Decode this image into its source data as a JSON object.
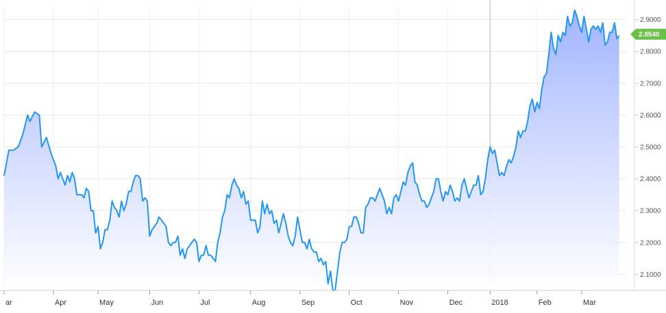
{
  "chart_data": {
    "type": "area",
    "title": "",
    "xlabel": "",
    "ylabel": "",
    "ylim": [
      2.06,
      2.94
    ],
    "y_ticks": [
      "2.9000",
      "2.8000",
      "2.7000",
      "2.6000",
      "2.5000",
      "2.4000",
      "2.3000",
      "2.2000",
      "2.1000"
    ],
    "x_ticks": [
      "ar",
      "Apr",
      "May",
      "Jun",
      "Jul",
      "Aug",
      "Sep",
      "Oct",
      "Nov",
      "Dec",
      "2018",
      "Feb",
      "Mar"
    ],
    "grid": true,
    "last_value_label": "2.8540",
    "colors": {
      "line": "#2196f3",
      "fill_top": "#9db1ff",
      "fill_bottom": "#ffffff",
      "last_badge": "#6cc04a",
      "separator": "#bbbbbb"
    },
    "series": [
      {
        "x_period": [
          "Mar",
          "Mar"
        ],
        "points": [
          [
            0,
            2.41
          ],
          [
            2,
            2.49
          ],
          [
            4,
            2.49
          ],
          [
            6,
            2.5
          ],
          [
            8,
            2.54
          ],
          [
            10,
            2.6
          ],
          [
            11,
            2.58
          ],
          [
            13,
            2.61
          ],
          [
            15,
            2.6
          ],
          [
            16,
            2.5
          ],
          [
            18,
            2.53
          ],
          [
            20,
            2.48
          ],
          [
            22,
            2.44
          ],
          [
            23,
            2.4
          ],
          [
            24,
            2.42
          ],
          [
            26,
            2.38
          ],
          [
            27,
            2.41
          ],
          [
            28,
            2.39
          ],
          [
            29,
            2.42
          ],
          [
            30,
            2.4
          ],
          [
            31,
            2.35
          ],
          [
            33,
            2.35
          ],
          [
            34,
            2.34
          ],
          [
            35,
            2.37
          ],
          [
            36,
            2.36
          ],
          [
            37,
            2.3
          ],
          [
            38,
            2.3
          ],
          [
            39,
            2.23
          ],
          [
            40,
            2.25
          ],
          [
            41,
            2.18
          ],
          [
            42,
            2.2
          ],
          [
            43,
            2.24
          ],
          [
            44,
            2.24
          ],
          [
            45,
            2.27
          ],
          [
            46,
            2.33
          ],
          [
            47,
            2.31
          ],
          [
            48,
            2.3
          ],
          [
            49,
            2.28
          ],
          [
            50,
            2.33
          ],
          [
            51,
            2.3
          ],
          [
            52,
            2.32
          ],
          [
            53,
            2.36
          ],
          [
            54,
            2.36
          ],
          [
            55,
            2.39
          ],
          [
            56,
            2.41
          ],
          [
            57,
            2.41
          ],
          [
            58,
            2.4
          ],
          [
            59,
            2.33
          ],
          [
            60,
            2.34
          ],
          [
            61,
            2.33
          ],
          [
            62,
            2.22
          ],
          [
            63,
            2.24
          ],
          [
            64,
            2.25
          ],
          [
            65,
            2.26
          ],
          [
            66,
            2.28
          ],
          [
            67,
            2.27
          ],
          [
            68,
            2.26
          ],
          [
            69,
            2.25
          ],
          [
            70,
            2.2
          ],
          [
            71,
            2.19
          ],
          [
            72,
            2.2
          ],
          [
            73,
            2.2
          ],
          [
            74,
            2.22
          ],
          [
            75,
            2.16
          ],
          [
            76,
            2.18
          ],
          [
            77,
            2.15
          ],
          [
            78,
            2.18
          ],
          [
            79,
            2.19
          ],
          [
            80,
            2.2
          ],
          [
            81,
            2.21
          ],
          [
            82,
            2.2
          ],
          [
            83,
            2.14
          ],
          [
            84,
            2.16
          ],
          [
            85,
            2.16
          ],
          [
            86,
            2.19
          ],
          [
            87,
            2.16
          ],
          [
            88,
            2.16
          ],
          [
            89,
            2.15
          ],
          [
            90,
            2.14
          ],
          [
            91,
            2.2
          ],
          [
            92,
            2.23
          ],
          [
            93,
            2.28
          ],
          [
            94,
            2.3
          ],
          [
            95,
            2.35
          ],
          [
            96,
            2.34
          ],
          [
            97,
            2.38
          ],
          [
            98,
            2.4
          ],
          [
            99,
            2.38
          ],
          [
            100,
            2.37
          ],
          [
            101,
            2.34
          ],
          [
            102,
            2.36
          ],
          [
            103,
            2.32
          ],
          [
            104,
            2.33
          ],
          [
            105,
            2.27
          ],
          [
            106,
            2.27
          ],
          [
            107,
            2.27
          ],
          [
            108,
            2.23
          ],
          [
            109,
            2.25
          ],
          [
            110,
            2.33
          ],
          [
            111,
            2.29
          ],
          [
            112,
            2.32
          ],
          [
            113,
            2.29
          ],
          [
            114,
            2.3
          ],
          [
            115,
            2.26
          ],
          [
            116,
            2.27
          ],
          [
            117,
            2.23
          ],
          [
            118,
            2.26
          ],
          [
            119,
            2.29
          ],
          [
            120,
            2.26
          ],
          [
            121,
            2.22
          ],
          [
            122,
            2.2
          ],
          [
            123,
            2.19
          ],
          [
            124,
            2.22
          ],
          [
            125,
            2.28
          ],
          [
            126,
            2.24
          ],
          [
            127,
            2.2
          ],
          [
            128,
            2.2
          ],
          [
            129,
            2.18
          ],
          [
            130,
            2.21
          ],
          [
            131,
            2.18
          ],
          [
            132,
            2.17
          ],
          [
            133,
            2.17
          ],
          [
            134,
            2.14
          ],
          [
            135,
            2.15
          ],
          [
            136,
            2.13
          ],
          [
            137,
            2.14
          ],
          [
            138,
            2.07
          ],
          [
            139,
            2.11
          ],
          [
            140,
            2.05
          ],
          [
            141,
            2.05
          ],
          [
            142,
            2.11
          ],
          [
            143,
            2.17
          ],
          [
            144,
            2.2
          ],
          [
            145,
            2.2
          ],
          [
            146,
            2.21
          ],
          [
            147,
            2.25
          ],
          [
            148,
            2.25
          ],
          [
            149,
            2.28
          ],
          [
            150,
            2.28
          ],
          [
            151,
            2.26
          ],
          [
            152,
            2.23
          ],
          [
            153,
            2.23
          ],
          [
            154,
            2.31
          ],
          [
            155,
            2.32
          ],
          [
            156,
            2.34
          ],
          [
            157,
            2.34
          ],
          [
            158,
            2.33
          ],
          [
            159,
            2.35
          ],
          [
            160,
            2.37
          ],
          [
            161,
            2.35
          ],
          [
            162,
            2.33
          ],
          [
            163,
            2.29
          ],
          [
            164,
            2.31
          ],
          [
            165,
            2.29
          ],
          [
            166,
            2.34
          ],
          [
            167,
            2.35
          ],
          [
            168,
            2.33
          ],
          [
            169,
            2.36
          ],
          [
            170,
            2.39
          ],
          [
            171,
            2.38
          ],
          [
            172,
            2.42
          ],
          [
            173,
            2.44
          ],
          [
            174,
            2.45
          ],
          [
            175,
            2.39
          ],
          [
            176,
            2.38
          ],
          [
            177,
            2.35
          ],
          [
            178,
            2.33
          ],
          [
            179,
            2.33
          ],
          [
            180,
            2.31
          ],
          [
            181,
            2.32
          ],
          [
            182,
            2.34
          ],
          [
            183,
            2.36
          ],
          [
            184,
            2.4
          ],
          [
            185,
            2.4
          ],
          [
            186,
            2.36
          ],
          [
            187,
            2.33
          ],
          [
            188,
            2.36
          ],
          [
            189,
            2.35
          ],
          [
            190,
            2.38
          ],
          [
            191,
            2.36
          ],
          [
            192,
            2.33
          ],
          [
            193,
            2.34
          ],
          [
            194,
            2.33
          ],
          [
            195,
            2.38
          ],
          [
            196,
            2.4
          ],
          [
            197,
            2.37
          ],
          [
            198,
            2.34
          ],
          [
            199,
            2.36
          ],
          [
            200,
            2.38
          ],
          [
            201,
            2.38
          ],
          [
            202,
            2.41
          ],
          [
            203,
            2.35
          ],
          [
            204,
            2.36
          ],
          [
            205,
            2.4
          ],
          [
            206,
            2.46
          ],
          [
            207,
            2.5
          ],
          [
            208,
            2.48
          ],
          [
            209,
            2.49
          ],
          [
            210,
            2.45
          ],
          [
            211,
            2.41
          ],
          [
            212,
            2.42
          ],
          [
            213,
            2.41
          ],
          [
            214,
            2.44
          ],
          [
            215,
            2.46
          ],
          [
            216,
            2.45
          ],
          [
            217,
            2.47
          ],
          [
            218,
            2.5
          ],
          [
            219,
            2.55
          ],
          [
            220,
            2.53
          ],
          [
            221,
            2.55
          ],
          [
            222,
            2.55
          ],
          [
            223,
            2.58
          ],
          [
            224,
            2.63
          ],
          [
            225,
            2.65
          ],
          [
            226,
            2.61
          ],
          [
            227,
            2.64
          ],
          [
            228,
            2.62
          ],
          [
            229,
            2.68
          ],
          [
            230,
            2.72
          ],
          [
            231,
            2.73
          ],
          [
            232,
            2.79
          ],
          [
            233,
            2.86
          ],
          [
            234,
            2.81
          ],
          [
            235,
            2.79
          ],
          [
            236,
            2.85
          ],
          [
            237,
            2.83
          ],
          [
            238,
            2.86
          ],
          [
            239,
            2.85
          ],
          [
            240,
            2.91
          ],
          [
            241,
            2.88
          ],
          [
            242,
            2.89
          ],
          [
            243,
            2.93
          ],
          [
            244,
            2.91
          ],
          [
            245,
            2.88
          ],
          [
            246,
            2.86
          ],
          [
            247,
            2.91
          ],
          [
            248,
            2.87
          ],
          [
            249,
            2.83
          ],
          [
            250,
            2.87
          ],
          [
            251,
            2.88
          ],
          [
            252,
            2.87
          ],
          [
            253,
            2.88
          ],
          [
            254,
            2.86
          ],
          [
            255,
            2.89
          ],
          [
            256,
            2.82
          ],
          [
            257,
            2.83
          ],
          [
            258,
            2.86
          ],
          [
            259,
            2.86
          ],
          [
            260,
            2.89
          ],
          [
            261,
            2.84
          ],
          [
            262,
            2.85
          ]
        ]
      }
    ],
    "x_tick_positions": [
      0,
      21,
      40,
      62,
      83,
      105,
      126,
      147,
      168,
      189,
      207,
      227,
      246
    ],
    "x_max": 265,
    "year_separator_x": 207
  }
}
